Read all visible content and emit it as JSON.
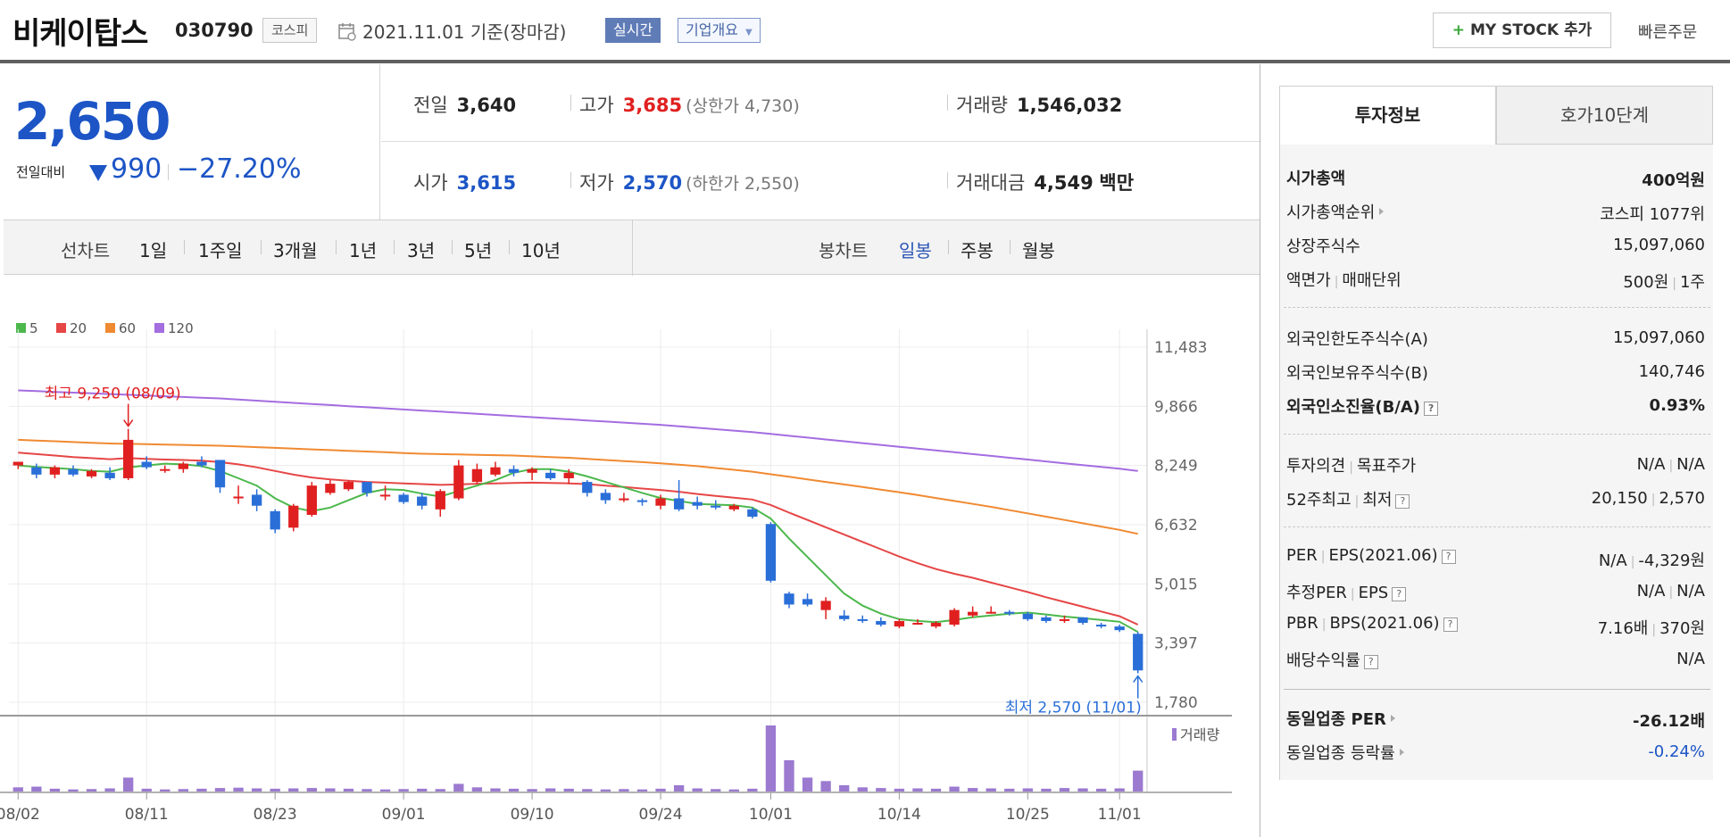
{
  "header": {
    "stock_name": "비케이탑스",
    "stock_code": "030790",
    "market": "코스피",
    "date_text": "2021.11.01 기준(장마감)",
    "realtime_label": "실시간",
    "company_label": "기업개요",
    "mystock_plus": "+",
    "mystock_label": "MY STOCK 추가",
    "quick_order_label": "빠른주문"
  },
  "quote": {
    "price": "2,650",
    "change_label": "전일대비",
    "change": "990",
    "change_pct": "−27.20%",
    "prev_close_label": "전일",
    "prev_close": "3,640",
    "high_label": "고가",
    "high": "3,685",
    "upper_limit": "(상한가 4,730)",
    "volume_label": "거래량",
    "volume": "1,546,032",
    "open_label": "시가",
    "open": "3,615",
    "low_label": "저가",
    "low": "2,570",
    "lower_limit": "(하한가 2,550)",
    "amount_label": "거래대금",
    "amount": "4,549",
    "amount_unit": "백만"
  },
  "period_bar": {
    "line_chart_label": "선차트",
    "line_options": [
      "1일",
      "1주일",
      "3개월",
      "1년",
      "3년",
      "5년",
      "10년"
    ],
    "candle_chart_label": "봉차트",
    "candle_options": [
      "일봉",
      "주봉",
      "월봉"
    ],
    "candle_selected": "일봉"
  },
  "chart_data": {
    "type": "candlestick",
    "legend": [
      {
        "name": "5",
        "color": "#4cb84c"
      },
      {
        "name": "20",
        "color": "#e64646"
      },
      {
        "name": "60",
        "color": "#f08a32"
      },
      {
        "name": "120",
        "color": "#a46de0"
      }
    ],
    "y_ticks": [
      "11,483",
      "9,866",
      "8,249",
      "6,632",
      "5,015",
      "3,397",
      "1,780"
    ],
    "ylim": [
      1780,
      11483
    ],
    "x_ticks": [
      "08/02",
      "08/11",
      "08/23",
      "09/01",
      "09/10",
      "09/24",
      "10/01",
      "10/14",
      "10/25",
      "11/01"
    ],
    "x_tick_index": [
      0,
      7,
      14,
      21,
      28,
      35,
      41,
      48,
      55,
      60
    ],
    "max_annotation": "최고 9,250 (08/09)",
    "min_annotation": "최저 2,570 (11/01)",
    "volume_label": "거래량",
    "candles": [
      [
        8250,
        8350,
        8150,
        8350
      ],
      [
        8200,
        8300,
        7900,
        8000
      ],
      [
        8000,
        8250,
        7900,
        8200
      ],
      [
        8150,
        8250,
        7950,
        8000
      ],
      [
        7950,
        8150,
        7900,
        8100
      ],
      [
        8050,
        8200,
        7850,
        7900
      ],
      [
        7900,
        9250,
        7850,
        8950
      ],
      [
        8350,
        8500,
        8150,
        8200
      ],
      [
        8150,
        8250,
        8050,
        8150
      ],
      [
        8150,
        8350,
        8050,
        8300
      ],
      [
        8350,
        8500,
        8200,
        8250
      ],
      [
        8400,
        8400,
        7500,
        7650
      ],
      [
        7350,
        7700,
        7200,
        7400
      ],
      [
        7450,
        7600,
        7000,
        7150
      ],
      [
        7000,
        7050,
        6400,
        6500
      ],
      [
        6550,
        7200,
        6450,
        7150
      ],
      [
        6900,
        7800,
        6850,
        7700
      ],
      [
        7500,
        7850,
        7450,
        7750
      ],
      [
        7600,
        7850,
        7550,
        7800
      ],
      [
        7800,
        7800,
        7400,
        7500
      ],
      [
        7450,
        7700,
        7300,
        7450
      ],
      [
        7450,
        7500,
        7200,
        7250
      ],
      [
        7400,
        7500,
        7050,
        7150
      ],
      [
        7050,
        7600,
        6850,
        7550
      ],
      [
        7350,
        8400,
        7300,
        8250
      ],
      [
        7800,
        8300,
        7750,
        8150
      ],
      [
        8000,
        8350,
        7950,
        8200
      ],
      [
        8150,
        8250,
        7950,
        8050
      ],
      [
        8050,
        8200,
        7850,
        8150
      ],
      [
        8050,
        8150,
        7850,
        7900
      ],
      [
        7900,
        8150,
        7750,
        8050
      ],
      [
        7800,
        7850,
        7400,
        7500
      ],
      [
        7500,
        7600,
        7200,
        7300
      ],
      [
        7300,
        7500,
        7250,
        7350
      ],
      [
        7300,
        7350,
        7150,
        7250
      ],
      [
        7150,
        7450,
        7050,
        7350
      ],
      [
        7350,
        7850,
        7000,
        7050
      ],
      [
        7250,
        7400,
        7050,
        7150
      ],
      [
        7150,
        7300,
        7050,
        7100
      ],
      [
        7050,
        7200,
        7000,
        7150
      ],
      [
        7050,
        7100,
        6800,
        6850
      ],
      [
        6650,
        6700,
        5050,
        5100
      ],
      [
        4750,
        4800,
        4350,
        4450
      ],
      [
        4600,
        4750,
        4400,
        4450
      ],
      [
        4300,
        4650,
        4050,
        4550
      ],
      [
        4150,
        4300,
        4000,
        4050
      ],
      [
        4050,
        4150,
        3950,
        4000
      ],
      [
        4000,
        4100,
        3850,
        3900
      ],
      [
        3850,
        4050,
        3800,
        4000
      ],
      [
        3950,
        4050,
        3900,
        3950
      ],
      [
        3850,
        4000,
        3800,
        3950
      ],
      [
        3900,
        4350,
        3850,
        4300
      ],
      [
        4150,
        4400,
        4100,
        4250
      ],
      [
        4250,
        4400,
        4200,
        4250
      ],
      [
        4250,
        4300,
        4150,
        4200
      ],
      [
        4200,
        4250,
        4000,
        4050
      ],
      [
        4100,
        4150,
        3950,
        4000
      ],
      [
        4000,
        4150,
        3950,
        4050
      ],
      [
        4100,
        4100,
        3900,
        3950
      ],
      [
        3900,
        3950,
        3800,
        3850
      ],
      [
        3850,
        3900,
        3700,
        3750
      ],
      [
        3650,
        3700,
        2570,
        2650
      ]
    ],
    "volume": [
      12,
      14,
      8,
      6,
      7,
      9,
      40,
      8,
      6,
      7,
      8,
      10,
      11,
      9,
      8,
      9,
      10,
      9,
      8,
      7,
      6,
      7,
      8,
      7,
      22,
      12,
      9,
      8,
      7,
      9,
      8,
      7,
      6,
      7,
      6,
      8,
      18,
      9,
      7,
      6,
      8,
      190,
      90,
      40,
      30,
      18,
      12,
      10,
      8,
      9,
      8,
      14,
      10,
      9,
      8,
      9,
      8,
      10,
      9,
      8,
      9,
      60
    ],
    "ma": {
      "5": [
        8250,
        8210,
        8180,
        8150,
        8100,
        8080,
        8200,
        8250,
        8300,
        8280,
        8230,
        8100,
        7900,
        7700,
        7350,
        7100,
        7000,
        7100,
        7300,
        7500,
        7600,
        7580,
        7480,
        7400,
        7550,
        7700,
        7850,
        8050,
        8150,
        8150,
        8080,
        7950,
        7800,
        7650,
        7500,
        7360,
        7280,
        7200,
        7180,
        7160,
        7100,
        6800,
        6250,
        5750,
        5250,
        4750,
        4420,
        4200,
        4050,
        4000,
        3970,
        4030,
        4100,
        4150,
        4200,
        4230,
        4180,
        4120,
        4080,
        4030,
        3980,
        3700
      ],
      "20": [
        8600,
        8560,
        8520,
        8480,
        8450,
        8420,
        8450,
        8430,
        8410,
        8400,
        8380,
        8340,
        8280,
        8200,
        8100,
        8000,
        7920,
        7870,
        7830,
        7800,
        7780,
        7760,
        7740,
        7720,
        7730,
        7750,
        7760,
        7770,
        7780,
        7770,
        7760,
        7740,
        7700,
        7660,
        7620,
        7580,
        7530,
        7470,
        7420,
        7370,
        7320,
        7170,
        6960,
        6760,
        6560,
        6360,
        6160,
        5960,
        5760,
        5580,
        5420,
        5290,
        5180,
        5050,
        4920,
        4790,
        4650,
        4520,
        4390,
        4260,
        4130,
        3900
      ],
      "60": [
        8950,
        8930,
        8910,
        8890,
        8870,
        8850,
        8840,
        8830,
        8820,
        8810,
        8800,
        8790,
        8770,
        8750,
        8730,
        8710,
        8690,
        8670,
        8650,
        8630,
        8610,
        8590,
        8570,
        8560,
        8550,
        8540,
        8530,
        8520,
        8500,
        8480,
        8460,
        8430,
        8400,
        8370,
        8340,
        8310,
        8270,
        8230,
        8180,
        8130,
        8080,
        8010,
        7940,
        7870,
        7800,
        7730,
        7660,
        7590,
        7520,
        7440,
        7360,
        7280,
        7200,
        7120,
        7030,
        6940,
        6850,
        6760,
        6670,
        6580,
        6490,
        6380
      ],
      "120": [
        10300,
        10280,
        10260,
        10240,
        10220,
        10200,
        10180,
        10160,
        10140,
        10120,
        10100,
        10080,
        10050,
        10020,
        9990,
        9960,
        9930,
        9900,
        9870,
        9840,
        9810,
        9780,
        9750,
        9720,
        9690,
        9660,
        9630,
        9600,
        9570,
        9540,
        9510,
        9480,
        9450,
        9420,
        9390,
        9360,
        9320,
        9280,
        9240,
        9200,
        9160,
        9110,
        9060,
        9010,
        8960,
        8910,
        8860,
        8810,
        8760,
        8710,
        8660,
        8610,
        8560,
        8510,
        8460,
        8410,
        8360,
        8310,
        8260,
        8210,
        8160,
        8100
      ]
    },
    "up_color": "#e02020",
    "down_color": "#2a6fd8"
  },
  "invest_panel": {
    "tab_invest": "투자정보",
    "tab_hoga": "호가10단계",
    "rows": {
      "mktcap_k": "시가총액",
      "mktcap_v": "400억원",
      "rank_k": "시가총액순위",
      "rank_v": "코스피 1077위",
      "shares_k": "상장주식수",
      "shares_v": "15,097,060",
      "par_k1": "액면가",
      "par_k2": "매매단위",
      "par_v1": "500원",
      "par_v2": "1주",
      "forlim_k": "외국인한도주식수(A)",
      "forlim_v": "15,097,060",
      "forhold_k": "외국인보유주식수(B)",
      "forhold_v": "140,746",
      "forrate_k": "외국인소진율(B/A)",
      "forrate_v": "0.93%",
      "opinion_k1": "투자의견",
      "opinion_k2": "목표주가",
      "opinion_v1": "N/A",
      "opinion_v2": "N/A",
      "w52_k1": "52주최고",
      "w52_k2": "최저",
      "w52_v1": "20,150",
      "w52_v2": "2,570",
      "per_k1": "PER",
      "per_k2": "EPS(2021.06)",
      "per_v1": "N/A",
      "per_v2": "-4,329원",
      "eper_k1": "추정PER",
      "eper_k2": "EPS",
      "eper_v1": "N/A",
      "eper_v2": "N/A",
      "pbr_k1": "PBR",
      "pbr_k2": "BPS(2021.06)",
      "pbr_v1": "7.16배",
      "pbr_v2": "370원",
      "div_k": "배당수익률",
      "div_v": "N/A",
      "ind_per_k": "동일업종 PER",
      "ind_per_v": "-26.12배",
      "ind_chg_k": "동일업종 등락률",
      "ind_chg_v": "-0.24%"
    }
  }
}
